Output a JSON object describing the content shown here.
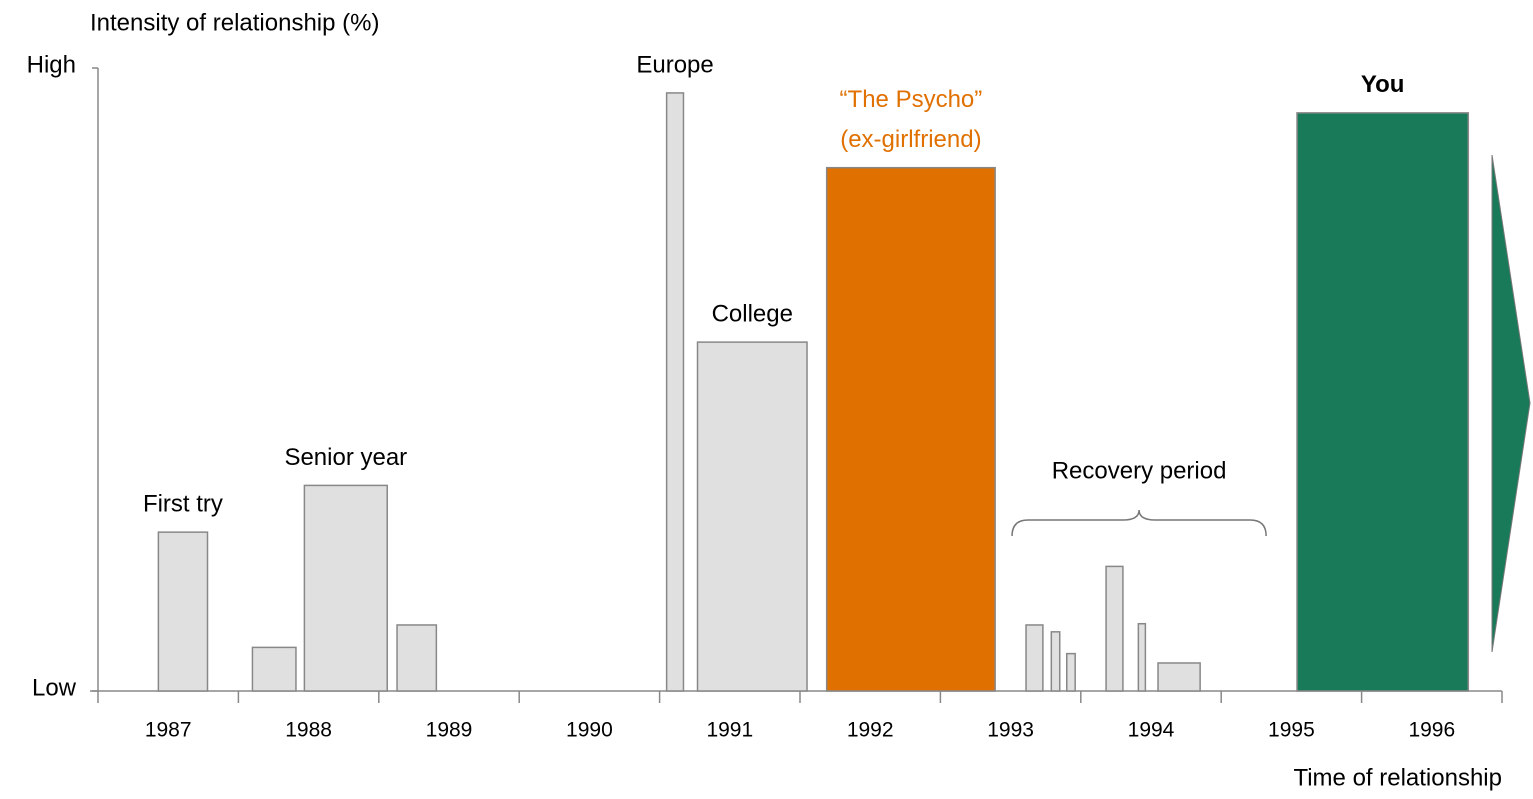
{
  "chart_data": {
    "type": "bar",
    "ylabel": "Intensity of relationship (%)",
    "xlabel": "Time of relationship",
    "xlim": [
      1987,
      1997
    ],
    "xticks": [
      1987,
      1988,
      1989,
      1990,
      1991,
      1992,
      1993,
      1994,
      1995,
      1996,
      1997
    ],
    "year_labels": [
      1987,
      1988,
      1989,
      1990,
      1991,
      1992,
      1993,
      1994,
      1995,
      1996
    ],
    "ylim": [
      0,
      100
    ],
    "yticks": [
      {
        "value": 0,
        "label": "Low"
      },
      {
        "value": 100,
        "label": "High"
      }
    ],
    "bars": [
      {
        "x0": 1987.43,
        "x1": 1987.78,
        "value": 25.5,
        "label": "First try",
        "color": "#e0e0e0"
      },
      {
        "x0": 1988.1,
        "x1": 1988.41,
        "value": 7,
        "color": "#e0e0e0"
      },
      {
        "x0": 1988.47,
        "x1": 1989.06,
        "value": 33,
        "label": "Senior year",
        "color": "#e0e0e0"
      },
      {
        "x0": 1989.13,
        "x1": 1989.41,
        "value": 10.6,
        "color": "#e0e0e0"
      },
      {
        "x0": 1991.05,
        "x1": 1991.17,
        "value": 96,
        "label": "Europe",
        "color": "#e0e0e0"
      },
      {
        "x0": 1991.27,
        "x1": 1992.05,
        "value": 56,
        "label": "College",
        "color": "#e0e0e0"
      },
      {
        "x0": 1992.19,
        "x1": 1993.39,
        "value": 84,
        "label": [
          "“The Psycho”",
          "(ex-girlfriend)"
        ],
        "color": "#e07000",
        "label_color": "#e07000"
      },
      {
        "x0": 1993.61,
        "x1": 1993.73,
        "value": 10.6,
        "color": "#e0e0e0"
      },
      {
        "x0": 1993.79,
        "x1": 1993.85,
        "value": 9.5,
        "color": "#e0e0e0"
      },
      {
        "x0": 1993.9,
        "x1": 1993.96,
        "value": 6,
        "color": "#e0e0e0"
      },
      {
        "x0": 1994.18,
        "x1": 1994.3,
        "value": 20,
        "color": "#e0e0e0"
      },
      {
        "x0": 1994.41,
        "x1": 1994.46,
        "value": 10.8,
        "color": "#e0e0e0"
      },
      {
        "x0": 1994.55,
        "x1": 1994.85,
        "value": 4.5,
        "color": "#e0e0e0"
      },
      {
        "x0": 1995.54,
        "x1": 1996.76,
        "value": 92.8,
        "label": "You",
        "color": "#187a58",
        "label_bold": true
      }
    ],
    "group_annotation": {
      "text": "Recovery period",
      "from_bar": 7,
      "to_bar": 12
    }
  }
}
